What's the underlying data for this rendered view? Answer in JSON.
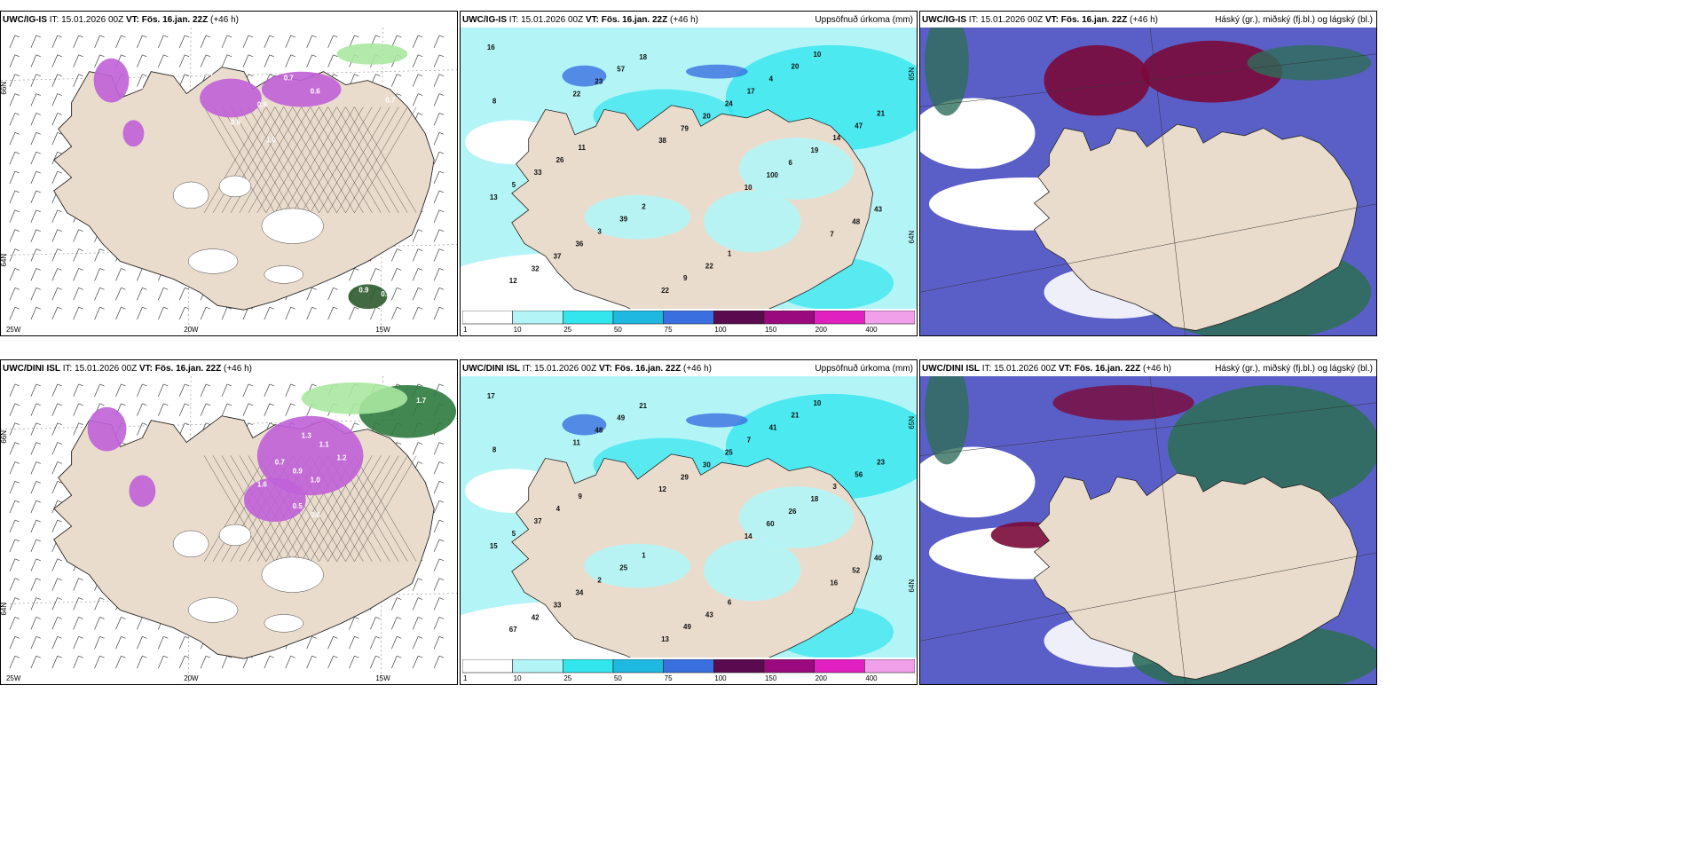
{
  "panels": [
    {
      "model": "UWC/IG-IS",
      "it_label": "IT:",
      "it": "15.01.2026 00Z",
      "vt_label": "VT:",
      "vt": "Fös. 16.jan. 22Z",
      "lead": "(+46 h)",
      "legend": "",
      "kind": "wind",
      "lat_labels": [
        "66N",
        "64N"
      ],
      "lon_labels": [
        "25W",
        "20W",
        "15W"
      ],
      "values": [
        "0.6",
        "0.7",
        "0.9",
        "0.8",
        "1.0",
        "0.7",
        "0.9",
        "0.2",
        "1.4",
        "0.7",
        "0.5"
      ]
    },
    {
      "model": "UWC/IG-IS",
      "it_label": "IT:",
      "it": "15.01.2026 00Z",
      "vt_label": "VT:",
      "vt": "Fös. 16.jan. 22Z",
      "lead": "(+46 h)",
      "legend": "Uppsöfnuð úrkoma (mm)",
      "kind": "precip",
      "lat_labels": [
        "65N",
        "64N"
      ],
      "values": [
        "16",
        "22",
        "38",
        "10",
        "7",
        "12",
        "23",
        "79",
        "100",
        "48",
        "32",
        "57",
        "20",
        "6",
        "43",
        "37",
        "18",
        "24",
        "19",
        "13",
        "36",
        "22",
        "17",
        "14",
        "5",
        "3",
        "9",
        "4",
        "47",
        "33",
        "39",
        "22",
        "20",
        "21",
        "26",
        "2",
        "1",
        "10",
        "8",
        "11"
      ],
      "colorbar": [
        "1",
        "10",
        "25",
        "50",
        "75",
        "100",
        "150",
        "200",
        "400"
      ]
    },
    {
      "model": "UWC/IG-IS",
      "it_label": "IT:",
      "it": "15.01.2026 00Z",
      "vt_label": "VT:",
      "vt": "Fös. 16.jan. 22Z",
      "lead": "(+46 h)",
      "legend": "Háský (gr.), miðský (fj.bl.) og lágský (bl.)",
      "kind": "cloud"
    },
    {
      "model": "UWC/DINI ISL",
      "it_label": "IT:",
      "it": "15.01.2026 00Z",
      "vt_label": "VT:",
      "vt": "Fös. 16.jan. 22Z",
      "lead": "(+46 h)",
      "legend": "",
      "kind": "wind",
      "lat_labels": [
        "66N",
        "64N"
      ],
      "lon_labels": [
        "25W",
        "20W",
        "15W"
      ],
      "values": [
        "1.3",
        "1.1",
        "1.2",
        "0.9",
        "1.0",
        "0.5",
        "0.6",
        "1.6",
        "0.7",
        "1.7",
        "0.6",
        "1.7",
        "0.7"
      ]
    },
    {
      "model": "UWC/DINI ISL",
      "it_label": "IT:",
      "it": "15.01.2026 00Z",
      "vt_label": "VT:",
      "vt": "Fös. 16.jan. 22Z",
      "lead": "(+46 h)",
      "legend": "Uppsöfnuð úrkoma (mm)",
      "kind": "precip",
      "lat_labels": [
        "65N",
        "64N"
      ],
      "values": [
        "17",
        "11",
        "12",
        "14",
        "16",
        "67",
        "48",
        "29",
        "60",
        "52",
        "42",
        "49",
        "30",
        "26",
        "40",
        "33",
        "21",
        "25",
        "18",
        "15",
        "34",
        "13",
        "7",
        "3",
        "5",
        "2",
        "49",
        "41",
        "56",
        "37",
        "25",
        "43",
        "21",
        "23",
        "4",
        "1",
        "6",
        "10",
        "8",
        "9"
      ],
      "colorbar": [
        "1",
        "10",
        "25",
        "50",
        "75",
        "100",
        "150",
        "200",
        "400"
      ]
    },
    {
      "model": "UWC/DINI ISL",
      "it_label": "IT:",
      "it": "15.01.2026 00Z",
      "vt_label": "VT:",
      "vt": "Fös. 16.jan. 22Z",
      "lead": "(+46 h)",
      "legend": "Háský (gr.), miðský (fj.bl.) og lágský (bl.)",
      "kind": "cloud"
    }
  ],
  "colors": {
    "land": "#eadccc",
    "precip": [
      "#ffffff",
      "#b3f5f7",
      "#33e6ee",
      "#1fb8e0",
      "#3a6fe0",
      "#2a2aa8",
      "#5a0a4e",
      "#9a0a7e",
      "#e020c0",
      "#f0a0e8"
    ],
    "high_cloud": "#2e6e5a",
    "mid_cloud": "#7a0a3a",
    "low_cloud": "#5a5fc8",
    "wind_hatch": "#555555",
    "wind_fill": "#c060d8",
    "wind_fill_light": "#a8e8a0"
  }
}
